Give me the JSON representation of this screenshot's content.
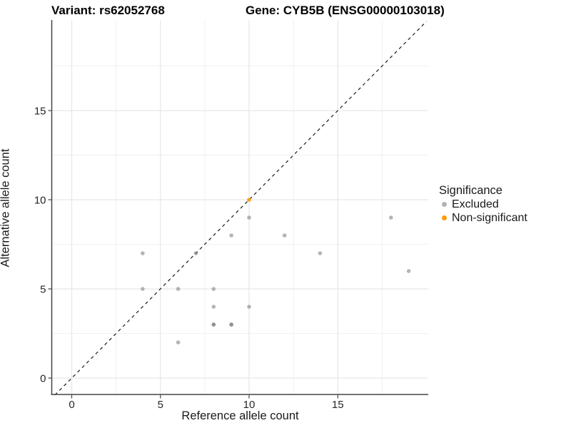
{
  "title": {
    "variant": "Variant: rs62052768",
    "gene": "Gene: CYB5B (ENSG00000103018)"
  },
  "chart_data": {
    "type": "scatter",
    "xlabel": "Reference allele count",
    "ylabel": "Alternative allele count",
    "xlim": [
      -1.1,
      20.0
    ],
    "ylim": [
      -0.95,
      20.0
    ],
    "x_ticks": [
      0,
      5,
      10,
      15
    ],
    "y_ticks": [
      0,
      5,
      10,
      15
    ],
    "x_minor_gridlines": [
      2.5,
      7.5,
      12.5,
      17.5
    ],
    "y_minor_gridlines": [
      2.5,
      7.5,
      12.5,
      17.5
    ],
    "grid": true,
    "identity_line": {
      "type": "dashed",
      "slope": 1,
      "intercept": 0,
      "color": "#1a1a1a"
    },
    "legend": {
      "title": "Significance",
      "position": "right",
      "entries": [
        {
          "label": "Excluded",
          "color": "#b3b3b3"
        },
        {
          "label": "Non-significant",
          "color": "#fa9b05"
        }
      ]
    },
    "series": [
      {
        "name": "Excluded",
        "color": "#6b6b6b",
        "opacity": 0.5,
        "points": [
          [
            4,
            7
          ],
          [
            4,
            5
          ],
          [
            6,
            5
          ],
          [
            6,
            2
          ],
          [
            7,
            7
          ],
          [
            8,
            5
          ],
          [
            8,
            4
          ],
          [
            8,
            3
          ],
          [
            8,
            3
          ],
          [
            9,
            3
          ],
          [
            9,
            3
          ],
          [
            9,
            8
          ],
          [
            10,
            9
          ],
          [
            10,
            4
          ],
          [
            12,
            8
          ],
          [
            14,
            7
          ],
          [
            18,
            9
          ],
          [
            19,
            6
          ]
        ]
      },
      {
        "name": "Non-significant",
        "color": "#fa9b05",
        "opacity": 0.9,
        "points": [
          [
            10,
            10
          ]
        ]
      }
    ]
  }
}
